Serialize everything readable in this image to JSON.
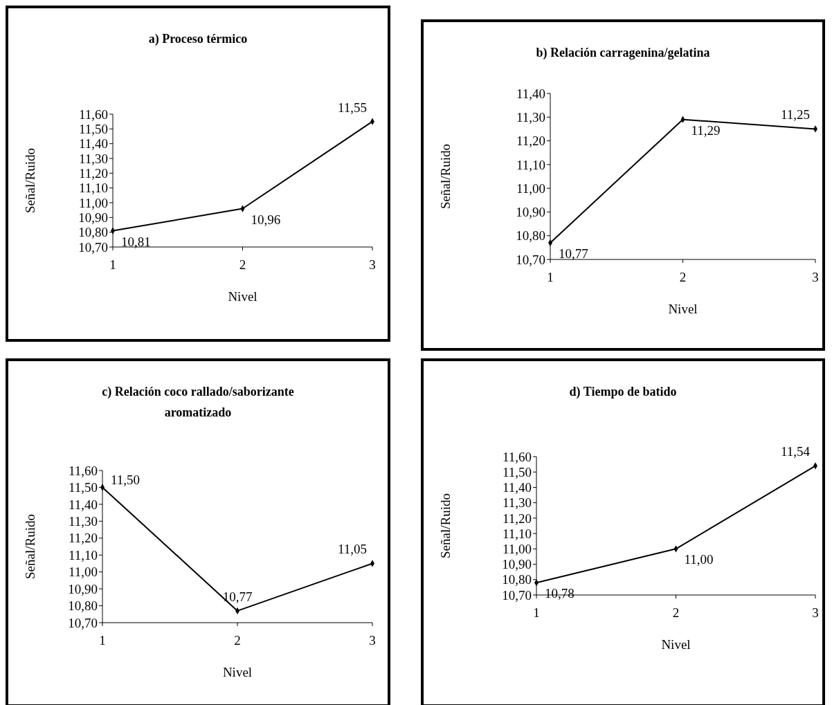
{
  "chart_data": [
    {
      "type": "line",
      "title": "a) Proceso térmico",
      "xlabel": "Nivel",
      "ylabel": "Señal/Ruido",
      "categories": [
        "1",
        "2",
        "3"
      ],
      "series": [
        {
          "color": "#000000",
          "values": [
            10.81,
            10.96,
            11.55
          ],
          "value_labels": [
            "10,81",
            "10,96",
            "11,55"
          ]
        }
      ],
      "ylim": [
        10.7,
        11.6
      ],
      "yticks": [
        {
          "value": 10.7,
          "label": "10,70"
        },
        {
          "value": 10.8,
          "label": "10,80"
        },
        {
          "value": 10.9,
          "label": "10,90"
        },
        {
          "value": 11.0,
          "label": "11,00"
        },
        {
          "value": 11.1,
          "label": "11,10"
        },
        {
          "value": 11.2,
          "label": "11,20"
        },
        {
          "value": 11.3,
          "label": "11,30"
        },
        {
          "value": 11.4,
          "label": "11,40"
        },
        {
          "value": 11.5,
          "label": "11,50"
        },
        {
          "value": 11.6,
          "label": "11,60"
        }
      ],
      "marker": "diamond",
      "line_style": "solid",
      "grid": false
    },
    {
      "type": "line",
      "title": "b) Relación carragenina/gelatina",
      "xlabel": "Nivel",
      "ylabel": "Señal/Ruido",
      "categories": [
        "1",
        "2",
        "3"
      ],
      "series": [
        {
          "color": "#000000",
          "values": [
            10.77,
            11.29,
            11.25
          ],
          "value_labels": [
            "10,77",
            "11,29",
            "11,25"
          ]
        }
      ],
      "ylim": [
        10.7,
        11.4
      ],
      "yticks": [
        {
          "value": 10.7,
          "label": "10,70"
        },
        {
          "value": 10.8,
          "label": "10,80"
        },
        {
          "value": 10.9,
          "label": "10,90"
        },
        {
          "value": 11.0,
          "label": "11,00"
        },
        {
          "value": 11.1,
          "label": "11,10"
        },
        {
          "value": 11.2,
          "label": "11,20"
        },
        {
          "value": 11.3,
          "label": "11,30"
        },
        {
          "value": 11.4,
          "label": "11,40"
        }
      ],
      "marker": "diamond",
      "line_style": "solid",
      "grid": false
    },
    {
      "type": "line",
      "title": "c) Relación coco rallado/saborizante aromatizado",
      "xlabel": "Nivel",
      "ylabel": "Señal/Ruido",
      "categories": [
        "1",
        "2",
        "3"
      ],
      "series": [
        {
          "color": "#000000",
          "values": [
            11.5,
            10.77,
            11.05
          ],
          "value_labels": [
            "11,50",
            "10,77",
            "11,05"
          ]
        }
      ],
      "ylim": [
        10.7,
        11.6
      ],
      "yticks": [
        {
          "value": 10.7,
          "label": "10,70"
        },
        {
          "value": 10.8,
          "label": "10,80"
        },
        {
          "value": 10.9,
          "label": "10,90"
        },
        {
          "value": 11.0,
          "label": "11,00"
        },
        {
          "value": 11.1,
          "label": "11,10"
        },
        {
          "value": 11.2,
          "label": "11,20"
        },
        {
          "value": 11.3,
          "label": "11,30"
        },
        {
          "value": 11.4,
          "label": "11,40"
        },
        {
          "value": 11.5,
          "label": "11,50"
        },
        {
          "value": 11.6,
          "label": "11,60"
        }
      ],
      "marker": "diamond",
      "line_style": "solid",
      "grid": false
    },
    {
      "type": "line",
      "title": "d) Tiempo de batido",
      "xlabel": "Nivel",
      "ylabel": "Señal/Ruido",
      "categories": [
        "1",
        "2",
        "3"
      ],
      "series": [
        {
          "color": "#000000",
          "values": [
            10.78,
            11.0,
            11.54
          ],
          "value_labels": [
            "10,78",
            "11,00",
            "11,54"
          ]
        }
      ],
      "ylim": [
        10.7,
        11.6
      ],
      "yticks": [
        {
          "value": 10.7,
          "label": "10,70"
        },
        {
          "value": 10.8,
          "label": "10,80"
        },
        {
          "value": 10.9,
          "label": "10,90"
        },
        {
          "value": 11.0,
          "label": "11,00"
        },
        {
          "value": 11.1,
          "label": "11,10"
        },
        {
          "value": 11.2,
          "label": "11,20"
        },
        {
          "value": 11.3,
          "label": "11,30"
        },
        {
          "value": 11.4,
          "label": "11,40"
        },
        {
          "value": 11.5,
          "label": "11,50"
        },
        {
          "value": 11.6,
          "label": "11,60"
        }
      ],
      "marker": "diamond",
      "line_style": "solid",
      "grid": false
    }
  ]
}
